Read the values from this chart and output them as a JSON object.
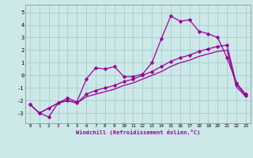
{
  "xlabel": "Windchill (Refroidissement éolien,°C)",
  "background_color": "#cce8e8",
  "grid_color": "#aacccc",
  "line_color": "#990099",
  "xlim": [
    -0.5,
    23.5
  ],
  "ylim": [
    -3.8,
    5.6
  ],
  "xticks": [
    0,
    1,
    2,
    3,
    4,
    5,
    6,
    7,
    8,
    9,
    10,
    11,
    12,
    13,
    14,
    15,
    16,
    17,
    18,
    19,
    20,
    21,
    22,
    23
  ],
  "yticks": [
    -3,
    -2,
    -1,
    0,
    1,
    2,
    3,
    4,
    5
  ],
  "series1_x": [
    0,
    1,
    2,
    3,
    4,
    5,
    6,
    7,
    8,
    9,
    10,
    11,
    12,
    13,
    14,
    15,
    16,
    17,
    18,
    19,
    20,
    21,
    22,
    23
  ],
  "series1_y": [
    -2.3,
    -3.0,
    -3.3,
    -2.2,
    -1.8,
    -2.1,
    -0.3,
    0.6,
    0.5,
    0.7,
    -0.1,
    -0.1,
    0.1,
    1.0,
    2.9,
    4.7,
    4.3,
    4.4,
    3.5,
    3.3,
    3.0,
    1.4,
    -0.6,
    -1.5
  ],
  "series2_x": [
    0,
    1,
    2,
    3,
    4,
    5,
    6,
    7,
    8,
    9,
    10,
    11,
    12,
    13,
    14,
    15,
    16,
    17,
    18,
    19,
    20,
    21,
    22,
    23
  ],
  "series2_y": [
    -2.3,
    -3.0,
    -2.6,
    -2.2,
    -2.0,
    -2.2,
    -1.5,
    -1.2,
    -1.0,
    -0.8,
    -0.5,
    -0.3,
    0.0,
    0.3,
    0.7,
    1.1,
    1.4,
    1.6,
    1.9,
    2.1,
    2.3,
    2.4,
    -0.7,
    -1.6
  ],
  "series3_x": [
    0,
    1,
    2,
    3,
    4,
    5,
    6,
    7,
    8,
    9,
    10,
    11,
    12,
    13,
    14,
    15,
    16,
    17,
    18,
    19,
    20,
    21,
    22,
    23
  ],
  "series3_y": [
    -2.3,
    -3.0,
    -2.6,
    -2.2,
    -2.0,
    -2.2,
    -1.7,
    -1.5,
    -1.3,
    -1.1,
    -0.8,
    -0.6,
    -0.3,
    0.0,
    0.3,
    0.7,
    1.0,
    1.2,
    1.5,
    1.7,
    1.9,
    2.0,
    -0.9,
    -1.7
  ]
}
